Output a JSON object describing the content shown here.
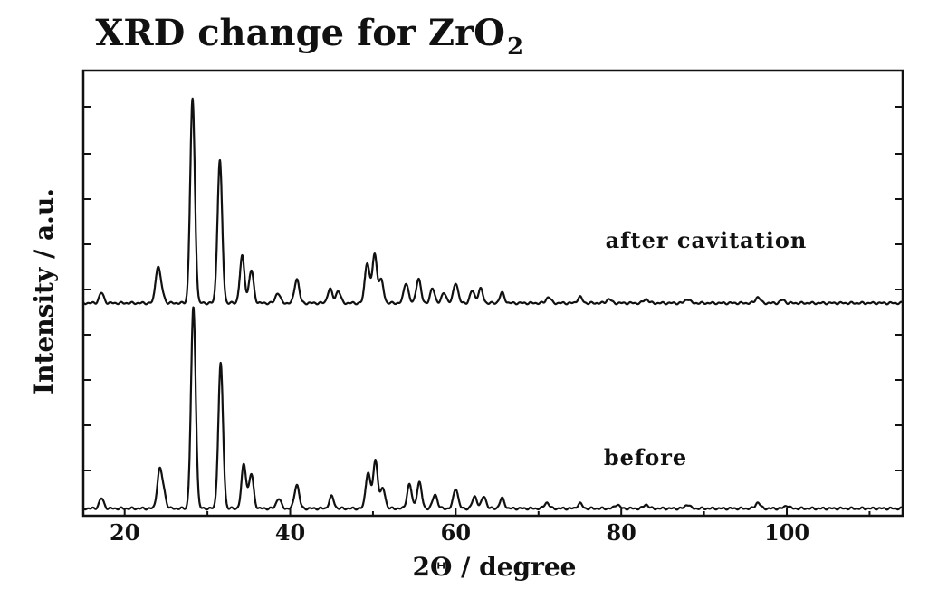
{
  "chart_data": {
    "type": "line",
    "title": "XRD change for ZrO",
    "title_subscript": "2",
    "xlabel": "2Θ / degree",
    "ylabel": "Intensity / a.u.",
    "xlim": [
      15,
      114
    ],
    "xticks": [
      20,
      40,
      60,
      80,
      100
    ],
    "yticks_shown": false,
    "grid": false,
    "legend": "none",
    "series": [
      {
        "name": "after cavitation",
        "baseline": 0,
        "peaks": [
          {
            "x": 17.2,
            "h": 0.05
          },
          {
            "x": 24.0,
            "h": 0.17
          },
          {
            "x": 24.5,
            "h": 0.05
          },
          {
            "x": 28.2,
            "h": 1.0
          },
          {
            "x": 31.5,
            "h": 0.7
          },
          {
            "x": 34.2,
            "h": 0.23
          },
          {
            "x": 35.3,
            "h": 0.16
          },
          {
            "x": 38.5,
            "h": 0.05
          },
          {
            "x": 40.8,
            "h": 0.12
          },
          {
            "x": 44.8,
            "h": 0.07
          },
          {
            "x": 45.8,
            "h": 0.06
          },
          {
            "x": 49.3,
            "h": 0.2
          },
          {
            "x": 50.2,
            "h": 0.24
          },
          {
            "x": 51.0,
            "h": 0.11
          },
          {
            "x": 54.0,
            "h": 0.1
          },
          {
            "x": 55.5,
            "h": 0.12
          },
          {
            "x": 57.2,
            "h": 0.07
          },
          {
            "x": 58.6,
            "h": 0.05
          },
          {
            "x": 60.0,
            "h": 0.1
          },
          {
            "x": 62.0,
            "h": 0.06
          },
          {
            "x": 63.0,
            "h": 0.07
          },
          {
            "x": 65.6,
            "h": 0.05
          },
          {
            "x": 71.2,
            "h": 0.03
          },
          {
            "x": 75.0,
            "h": 0.03
          },
          {
            "x": 78.5,
            "h": 0.02
          },
          {
            "x": 83.0,
            "h": 0.02
          },
          {
            "x": 88.0,
            "h": 0.02
          },
          {
            "x": 96.5,
            "h": 0.03
          },
          {
            "x": 99.5,
            "h": 0.015
          }
        ]
      },
      {
        "name": "before",
        "baseline": 0,
        "peaks": [
          {
            "x": 17.2,
            "h": 0.05
          },
          {
            "x": 24.2,
            "h": 0.18
          },
          {
            "x": 24.7,
            "h": 0.08
          },
          {
            "x": 28.3,
            "h": 1.0
          },
          {
            "x": 31.6,
            "h": 0.72
          },
          {
            "x": 34.4,
            "h": 0.22
          },
          {
            "x": 35.3,
            "h": 0.17
          },
          {
            "x": 38.6,
            "h": 0.05
          },
          {
            "x": 40.8,
            "h": 0.12
          },
          {
            "x": 45.0,
            "h": 0.06
          },
          {
            "x": 49.4,
            "h": 0.18
          },
          {
            "x": 50.3,
            "h": 0.24
          },
          {
            "x": 51.2,
            "h": 0.1
          },
          {
            "x": 54.4,
            "h": 0.12
          },
          {
            "x": 55.6,
            "h": 0.13
          },
          {
            "x": 57.5,
            "h": 0.07
          },
          {
            "x": 60.0,
            "h": 0.1
          },
          {
            "x": 62.3,
            "h": 0.06
          },
          {
            "x": 63.4,
            "h": 0.06
          },
          {
            "x": 65.6,
            "h": 0.05
          },
          {
            "x": 71.0,
            "h": 0.03
          },
          {
            "x": 75.0,
            "h": 0.025
          },
          {
            "x": 79.5,
            "h": 0.02
          },
          {
            "x": 83.0,
            "h": 0.02
          },
          {
            "x": 88.0,
            "h": 0.02
          },
          {
            "x": 96.5,
            "h": 0.03
          },
          {
            "x": 100.0,
            "h": 0.015
          }
        ]
      }
    ]
  }
}
